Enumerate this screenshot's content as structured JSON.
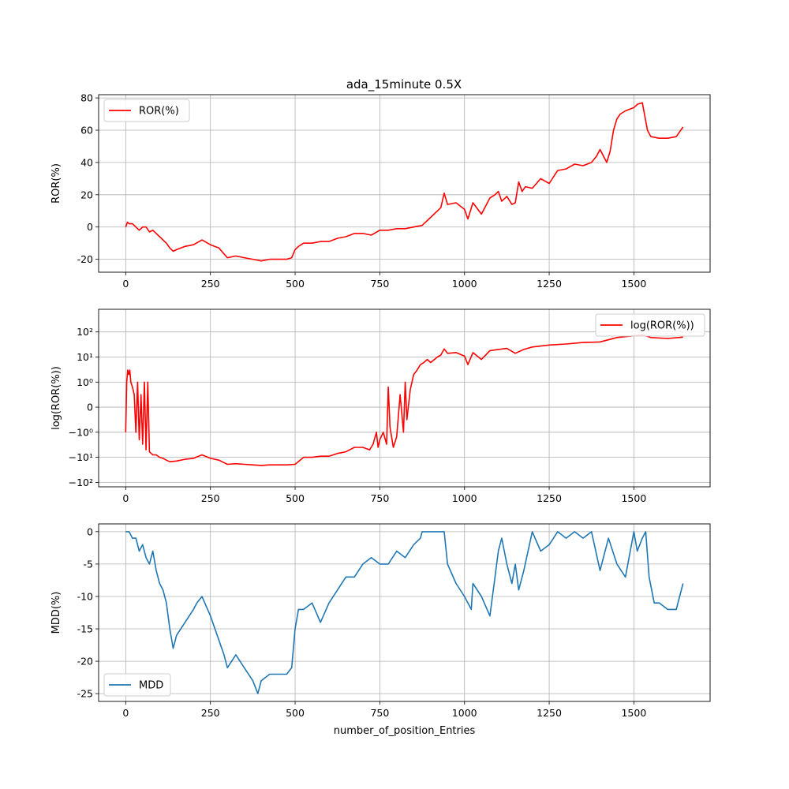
{
  "figure": {
    "title": "ada_15minute 0.5X"
  },
  "chart_data": [
    {
      "id": "ror",
      "type": "line",
      "title": "ada_15minute 0.5X",
      "xlabel": "",
      "ylabel": "ROR(%)",
      "xlim": [
        -80,
        1725
      ],
      "ylim": [
        -28,
        82
      ],
      "xticks": [
        0,
        250,
        500,
        750,
        1000,
        1250,
        1500
      ],
      "yticks": [
        -20,
        0,
        20,
        40,
        60,
        80
      ],
      "grid": true,
      "legend": "top-left",
      "series": [
        {
          "name": "ROR(%)",
          "color": "#ff0000",
          "x": [
            0,
            5,
            10,
            20,
            30,
            40,
            50,
            60,
            70,
            80,
            90,
            100,
            110,
            120,
            130,
            140,
            150,
            175,
            200,
            225,
            250,
            275,
            300,
            325,
            350,
            375,
            400,
            425,
            450,
            475,
            490,
            500,
            510,
            525,
            550,
            575,
            600,
            625,
            650,
            675,
            700,
            725,
            750,
            775,
            800,
            825,
            850,
            875,
            900,
            920,
            930,
            940,
            950,
            975,
            1000,
            1010,
            1025,
            1050,
            1075,
            1090,
            1100,
            1110,
            1125,
            1140,
            1150,
            1160,
            1170,
            1180,
            1200,
            1225,
            1250,
            1275,
            1300,
            1325,
            1350,
            1375,
            1390,
            1400,
            1410,
            1420,
            1430,
            1440,
            1450,
            1460,
            1475,
            1500,
            1510,
            1525,
            1540,
            1550,
            1575,
            1600,
            1625,
            1645
          ],
          "values": [
            0,
            3,
            2,
            2,
            0,
            -2,
            0,
            0,
            -3,
            -2,
            -4,
            -6,
            -8,
            -10,
            -13,
            -15,
            -14,
            -12,
            -11,
            -8,
            -11,
            -13,
            -19,
            -18,
            -19,
            -20,
            -21,
            -20,
            -20,
            -20,
            -19,
            -14,
            -12,
            -10,
            -10,
            -9,
            -9,
            -7,
            -6,
            -4,
            -4,
            -5,
            -2,
            -2,
            -1,
            -1,
            0,
            1,
            6,
            10,
            12,
            21,
            14,
            15,
            11,
            5,
            15,
            8,
            18,
            20,
            22,
            16,
            19,
            14,
            15,
            28,
            22,
            25,
            24,
            30,
            27,
            35,
            36,
            39,
            38,
            40,
            44,
            48,
            44,
            40,
            47,
            60,
            67,
            70,
            72,
            74,
            76,
            77,
            60,
            56,
            55,
            55,
            56,
            62
          ]
        }
      ]
    },
    {
      "id": "logror",
      "type": "line",
      "title": "",
      "xlabel": "",
      "ylabel": "log(ROR(%))",
      "yscale": "symlog",
      "xlim": [
        -80,
        1725
      ],
      "ylim": [
        -150,
        800
      ],
      "xticks": [
        0,
        250,
        500,
        750,
        1000,
        1250,
        1500
      ],
      "yticks": [
        "10²",
        "10¹",
        "10⁰",
        "0",
        "−10⁰",
        "−10¹",
        "−10²"
      ],
      "grid": true,
      "legend": "top-right",
      "series": [
        {
          "name": "log(ROR(%))",
          "color": "#ff0000",
          "x": [
            0,
            3,
            6,
            9,
            12,
            15,
            20,
            25,
            30,
            35,
            40,
            45,
            50,
            55,
            60,
            65,
            70,
            75,
            80,
            90,
            100,
            110,
            120,
            130,
            150,
            175,
            200,
            225,
            250,
            275,
            300,
            325,
            350,
            375,
            400,
            425,
            450,
            475,
            500,
            525,
            550,
            575,
            600,
            625,
            650,
            675,
            700,
            720,
            730,
            740,
            745,
            750,
            760,
            770,
            775,
            780,
            790,
            800,
            810,
            820,
            825,
            830,
            840,
            850,
            860,
            870,
            880,
            890,
            900,
            920,
            930,
            940,
            950,
            975,
            1000,
            1010,
            1025,
            1050,
            1075,
            1100,
            1125,
            1150,
            1175,
            1200,
            1250,
            1300,
            1350,
            1400,
            1450,
            1500,
            1525,
            1550,
            1600,
            1645
          ],
          "values": [
            -1,
            1,
            3,
            2,
            3,
            1,
            0.8,
            0.5,
            -1,
            1,
            -2,
            0.5,
            -3,
            1,
            -5,
            1,
            -6,
            -7,
            -8,
            -8,
            -10,
            -11,
            -13,
            -15,
            -14,
            -12,
            -11,
            -8,
            -11,
            -13,
            -19,
            -18,
            -19,
            -20,
            -21,
            -20,
            -20,
            -20,
            -19,
            -10,
            -10,
            -9,
            -9,
            -7,
            -6,
            -4,
            -4,
            -5,
            -3,
            -1,
            -4,
            -2,
            -1,
            -3,
            0.8,
            -0.8,
            -4,
            -1.5,
            0.5,
            -1,
            1,
            -0.5,
            0.7,
            2,
            3,
            5,
            6,
            8,
            6,
            10,
            12,
            21,
            14,
            15,
            11,
            5,
            15,
            8,
            18,
            20,
            22,
            14,
            20,
            25,
            30,
            33,
            38,
            40,
            60,
            70,
            77,
            60,
            55,
            62
          ]
        }
      ]
    },
    {
      "id": "mdd",
      "type": "line",
      "title": "",
      "xlabel": "number_of_position_Entries",
      "ylabel": "MDD(%)",
      "xlim": [
        -80,
        1725
      ],
      "ylim": [
        -26.2,
        1.2
      ],
      "xticks": [
        0,
        250,
        500,
        750,
        1000,
        1250,
        1500
      ],
      "yticks": [
        0,
        -5,
        -10,
        -15,
        -20,
        -25
      ],
      "grid": true,
      "legend": "bottom-left",
      "series": [
        {
          "name": "MDD",
          "color": "#1f77b4",
          "x": [
            0,
            10,
            20,
            30,
            40,
            50,
            60,
            70,
            80,
            90,
            100,
            110,
            120,
            130,
            140,
            150,
            175,
            200,
            210,
            225,
            250,
            270,
            290,
            300,
            325,
            350,
            375,
            390,
            400,
            425,
            450,
            475,
            490,
            500,
            510,
            525,
            550,
            575,
            600,
            625,
            650,
            675,
            700,
            725,
            750,
            775,
            800,
            825,
            850,
            870,
            875,
            900,
            925,
            940,
            950,
            975,
            1000,
            1020,
            1025,
            1050,
            1075,
            1090,
            1100,
            1110,
            1125,
            1140,
            1150,
            1160,
            1175,
            1200,
            1225,
            1250,
            1275,
            1300,
            1325,
            1350,
            1375,
            1400,
            1425,
            1450,
            1475,
            1500,
            1510,
            1525,
            1535,
            1545,
            1560,
            1575,
            1600,
            1625,
            1645
          ],
          "values": [
            0,
            0,
            -1,
            -1,
            -3,
            -2,
            -4,
            -5,
            -3,
            -6,
            -8,
            -9,
            -11,
            -15,
            -18,
            -16,
            -14,
            -12,
            -11,
            -10,
            -13,
            -16,
            -19,
            -21,
            -19,
            -21,
            -23,
            -25,
            -23,
            -22,
            -22,
            -22,
            -21,
            -15,
            -12,
            -12,
            -11,
            -14,
            -11,
            -9,
            -7,
            -7,
            -5,
            -4,
            -5,
            -5,
            -3,
            -4,
            -2,
            -1,
            0,
            0,
            0,
            0,
            -5,
            -8,
            -10,
            -12,
            -8,
            -10,
            -13,
            -7,
            -3,
            -1,
            -5,
            -8,
            -5,
            -9,
            -6,
            0,
            -3,
            -2,
            0,
            -1,
            0,
            -1,
            0,
            -6,
            -1,
            -5,
            -7,
            0,
            -3,
            -1,
            0,
            -7,
            -11,
            -11,
            -12,
            -12,
            -8
          ]
        }
      ]
    }
  ]
}
